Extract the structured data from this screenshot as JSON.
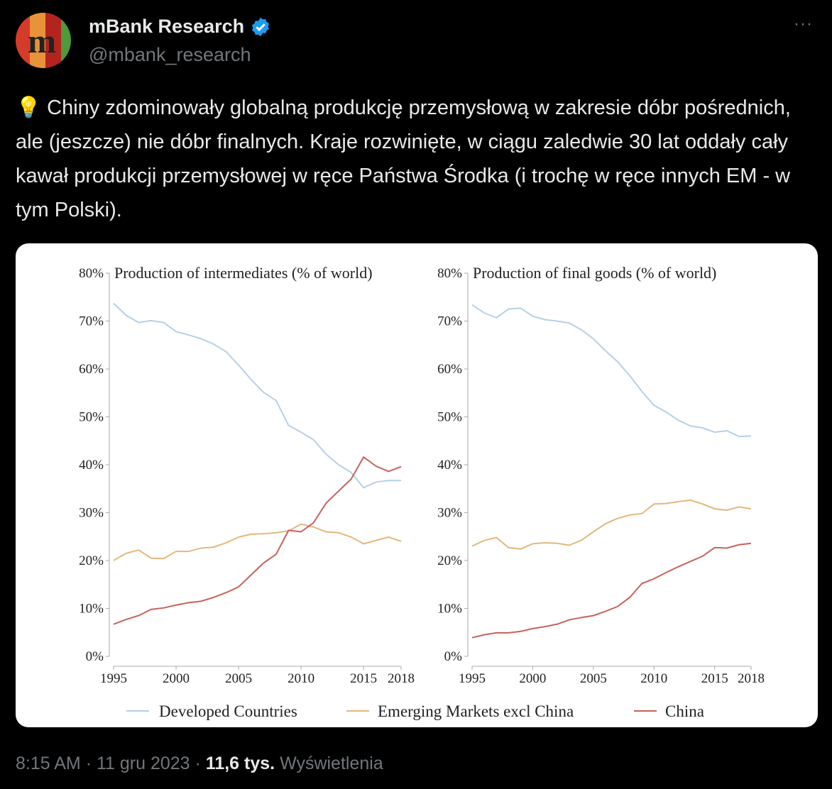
{
  "author": {
    "name": "mBank Research",
    "handle": "@mbank_research",
    "verified": true,
    "avatar_letter": "m"
  },
  "more_icon": "ellipsis-icon",
  "tweet": {
    "emoji": "💡",
    "text": " Chiny zdominowały globalną produkcję przemysłową w zakresie dóbr pośrednich, ale (jeszcze) nie dóbr finalnych. Kraje rozwinięte, w ciągu zaledwie 30 lat oddały cały kawał produkcji przemysłowej w ręce Państwa Środka (i trochę w ręce innych EM - w tym Polski)."
  },
  "footer": {
    "time": "8:15 AM",
    "date": "11 gru 2023",
    "views": "11,6 tys.",
    "views_label": "Wyświetlenia",
    "sep": "·"
  },
  "colors": {
    "developed": "#b7d0e8",
    "emerging": "#e5b77c",
    "china": "#c8625b"
  },
  "chart_data": [
    {
      "type": "line",
      "title": "Production of intermediates (% of world)",
      "x": [
        1995,
        1996,
        1997,
        1998,
        1999,
        2000,
        2001,
        2002,
        2003,
        2004,
        2005,
        2006,
        2007,
        2008,
        2009,
        2010,
        2011,
        2012,
        2013,
        2014,
        2015,
        2016,
        2017,
        2018
      ],
      "xticks": [
        "1995",
        "2000",
        "2005",
        "2010",
        "2015",
        "2018"
      ],
      "yticks": [
        "0%",
        "10%",
        "20%",
        "30%",
        "40%",
        "50%",
        "60%",
        "70%",
        "80%"
      ],
      "ylim": [
        0,
        80
      ],
      "series": [
        {
          "name": "Developed Countries",
          "values": [
            73.7,
            71.2,
            69.7,
            70.1,
            69.7,
            67.8,
            67.1,
            66.3,
            65.2,
            63.6,
            60.8,
            57.8,
            55.1,
            53.4,
            48.2,
            46.8,
            45.2,
            42.2,
            40.0,
            38.4,
            35.2,
            36.4,
            36.7,
            36.7
          ]
        },
        {
          "name": "Emerging Markets excl China",
          "values": [
            20.0,
            21.5,
            22.2,
            20.5,
            20.4,
            21.9,
            21.9,
            22.6,
            22.8,
            23.7,
            24.9,
            25.5,
            25.6,
            25.8,
            26.2,
            27.6,
            27.0,
            26.0,
            25.8,
            24.9,
            23.5,
            24.2,
            24.9,
            24.0
          ]
        },
        {
          "name": "China",
          "values": [
            6.7,
            7.7,
            8.5,
            9.8,
            10.1,
            10.7,
            11.2,
            11.5,
            12.3,
            13.3,
            14.5,
            17.0,
            19.5,
            21.3,
            26.3,
            26.0,
            27.9,
            32.0,
            34.5,
            37.0,
            41.6,
            39.7,
            38.6,
            39.6
          ]
        }
      ]
    },
    {
      "type": "line",
      "title": "Production of final goods (% of world)",
      "x": [
        1995,
        1996,
        1997,
        1998,
        1999,
        2000,
        2001,
        2002,
        2003,
        2004,
        2005,
        2006,
        2007,
        2008,
        2009,
        2010,
        2011,
        2012,
        2013,
        2014,
        2015,
        2016,
        2017,
        2018
      ],
      "xticks": [
        "1995",
        "2000",
        "2005",
        "2010",
        "2015",
        "2018"
      ],
      "yticks": [
        "0%",
        "10%",
        "20%",
        "30%",
        "40%",
        "50%",
        "60%",
        "70%",
        "80%"
      ],
      "ylim": [
        0,
        80
      ],
      "series": [
        {
          "name": "Developed Countries",
          "values": [
            73.4,
            71.7,
            70.7,
            72.5,
            72.7,
            71.0,
            70.3,
            70.0,
            69.6,
            68.2,
            66.3,
            63.8,
            61.5,
            58.6,
            55.3,
            52.4,
            51.0,
            49.3,
            48.1,
            47.7,
            46.8,
            47.1,
            45.9,
            46.0
          ]
        },
        {
          "name": "Emerging Markets excl China",
          "values": [
            23.0,
            24.2,
            24.8,
            22.7,
            22.4,
            23.5,
            23.7,
            23.6,
            23.2,
            24.2,
            26.0,
            27.7,
            28.8,
            29.5,
            29.8,
            31.8,
            31.9,
            32.3,
            32.6,
            31.8,
            30.8,
            30.5,
            31.2,
            30.8
          ]
        },
        {
          "name": "China",
          "values": [
            3.9,
            4.5,
            4.9,
            4.9,
            5.2,
            5.8,
            6.2,
            6.7,
            7.6,
            8.1,
            8.5,
            9.4,
            10.4,
            12.3,
            15.2,
            16.2,
            17.5,
            18.7,
            19.8,
            20.9,
            22.7,
            22.6,
            23.3,
            23.6
          ]
        }
      ]
    }
  ],
  "legend": [
    "Developed Countries",
    "Emerging Markets excl China",
    "China"
  ]
}
